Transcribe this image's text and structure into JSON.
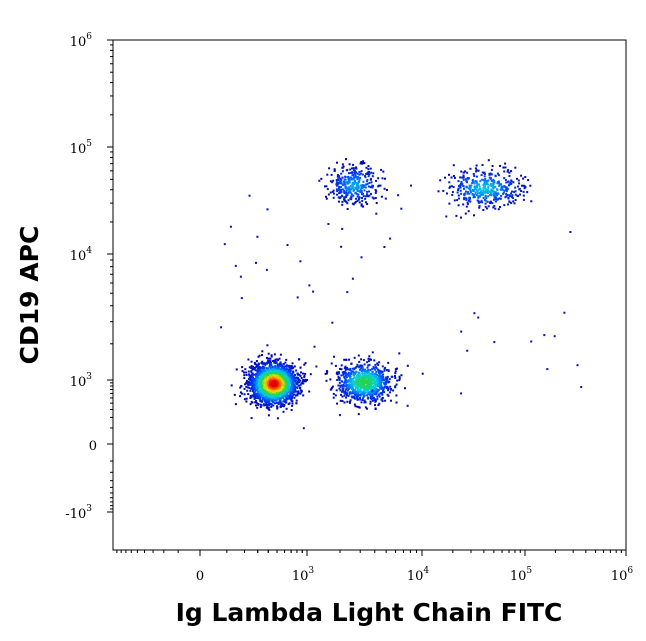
{
  "chart_data": {
    "type": "scatter",
    "xlabel": "Ig Lambda Light Chain FITC",
    "ylabel": "CD19 APC",
    "x_scale": "biexponential",
    "y_scale": "biexponential",
    "xlim": [
      -1000,
      1000000
    ],
    "ylim": [
      -2000,
      1000000
    ],
    "x_ticks": [
      {
        "value": 0,
        "base": "0",
        "exp": ""
      },
      {
        "value": 1000,
        "base": "10",
        "exp": "3"
      },
      {
        "value": 10000,
        "base": "10",
        "exp": "4"
      },
      {
        "value": 100000,
        "base": "10",
        "exp": "5"
      },
      {
        "value": 1000000,
        "base": "10",
        "exp": "6"
      }
    ],
    "y_ticks": [
      {
        "value": -1000,
        "base": "-10",
        "exp": "3"
      },
      {
        "value": 0,
        "base": "0",
        "exp": ""
      },
      {
        "value": 1000,
        "base": "10",
        "exp": "3"
      },
      {
        "value": 10000,
        "base": "10",
        "exp": "4"
      },
      {
        "value": 100000,
        "base": "10",
        "exp": "5"
      },
      {
        "value": 1000000,
        "base": "10",
        "exp": "6"
      }
    ],
    "color_scale": "density (blue-cyan-green-yellow-red)",
    "populations": [
      {
        "x_center": 450,
        "y_center": 900,
        "spread_x": 0.14,
        "spread_y": 0.12,
        "events": 2600
      },
      {
        "x_center": 3200,
        "y_center": 950,
        "spread_x": 0.17,
        "spread_y": 0.12,
        "events": 900
      },
      {
        "x_center": 2600,
        "y_center": 45000,
        "spread_x": 0.16,
        "spread_y": 0.12,
        "events": 330
      },
      {
        "x_center": 40000,
        "y_center": 42000,
        "spread_x": 0.24,
        "spread_y": 0.12,
        "events": 420
      }
    ],
    "grid": false,
    "legend": "none"
  }
}
